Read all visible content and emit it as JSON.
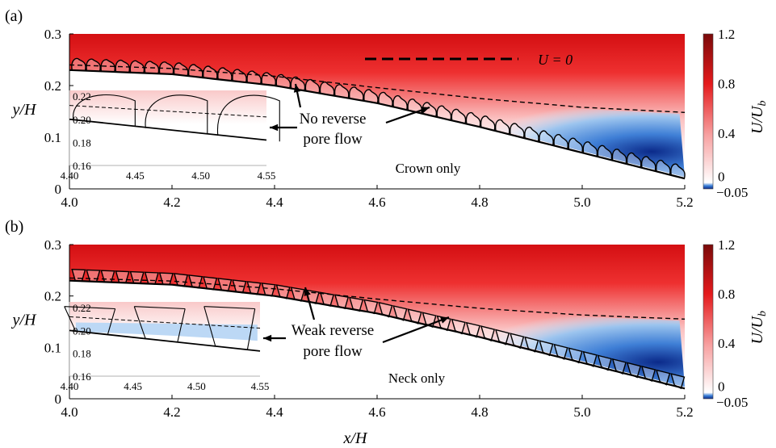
{
  "colors": {
    "positive_max": "#7a0a0a",
    "positive_mid": "#e41a1c",
    "zero": "#ffffff",
    "negative_light": "#cfe3f7",
    "negative_max": "#0b2a8a",
    "wall": "#000000"
  },
  "colorbar": {
    "label": "U/U",
    "label_sub": "b",
    "ticks": [
      "1.2",
      "0.8",
      "0.4",
      "0",
      "−0.05"
    ],
    "tick_values": [
      1.2,
      0.8,
      0.4,
      0,
      -0.05
    ]
  },
  "legend": {
    "label": "U = 0"
  },
  "chart_data": [
    {
      "type": "heatmap",
      "panel_label": "(a)",
      "xlabel": "",
      "ylabel": "y/H",
      "xlim": [
        4.0,
        5.2
      ],
      "ylim": [
        0,
        0.3
      ],
      "xticks": [
        "4.0",
        "4.2",
        "4.4",
        "4.6",
        "4.8",
        "5.0",
        "5.2"
      ],
      "yticks": [
        "0",
        "0.1",
        "0.2",
        "0.3"
      ],
      "annotation_main": "No reverse pore flow",
      "annotation_lines": [
        "No reverse",
        "pore flow"
      ],
      "case_label": "Crown only",
      "grain_shape": "crown",
      "reverse_pore_flow": false,
      "wall_surface": {
        "x": [
          4.0,
          4.2,
          4.4,
          4.6,
          4.8,
          5.0,
          5.2
        ],
        "y": [
          0.23,
          0.222,
          0.2,
          0.166,
          0.12,
          0.07,
          0.02
        ]
      },
      "zero_velocity_line": {
        "x": [
          4.0,
          4.2,
          4.4,
          4.6,
          4.8,
          5.0,
          5.2
        ],
        "y": [
          0.24,
          0.233,
          0.218,
          0.196,
          0.175,
          0.158,
          0.148
        ]
      },
      "inset": {
        "xlim": [
          4.4,
          4.55
        ],
        "ylim": [
          0.16,
          0.225
        ],
        "xticks": [
          "4.40",
          "4.45",
          "4.50",
          "4.55"
        ],
        "yticks": [
          "0.16",
          "0.18",
          "0.20",
          "0.22"
        ]
      }
    },
    {
      "type": "heatmap",
      "panel_label": "(b)",
      "xlabel": "x/H",
      "ylabel": "y/H",
      "xlim": [
        4.0,
        5.2
      ],
      "ylim": [
        0,
        0.3
      ],
      "xticks": [
        "4.0",
        "4.2",
        "4.4",
        "4.6",
        "4.8",
        "5.0",
        "5.2"
      ],
      "yticks": [
        "0",
        "0.1",
        "0.2",
        "0.3"
      ],
      "annotation_main": "Weak reverse pore flow",
      "annotation_lines": [
        "Weak reverse",
        "pore flow"
      ],
      "case_label": "Neck only",
      "grain_shape": "neck",
      "reverse_pore_flow": true,
      "wall_surface": {
        "x": [
          4.0,
          4.2,
          4.4,
          4.6,
          4.8,
          5.0,
          5.2
        ],
        "y": [
          0.23,
          0.222,
          0.2,
          0.166,
          0.12,
          0.07,
          0.02
        ]
      },
      "zero_velocity_line": {
        "x": [
          4.0,
          4.2,
          4.4,
          4.6,
          4.8,
          5.0,
          5.2
        ],
        "y": [
          0.235,
          0.229,
          0.214,
          0.194,
          0.176,
          0.163,
          0.155
        ]
      },
      "inset": {
        "xlim": [
          4.4,
          4.55
        ],
        "ylim": [
          0.16,
          0.225
        ],
        "xticks": [
          "4.40",
          "4.45",
          "4.50",
          "4.55"
        ],
        "yticks": [
          "0.16",
          "0.18",
          "0.20",
          "0.22"
        ]
      }
    }
  ]
}
